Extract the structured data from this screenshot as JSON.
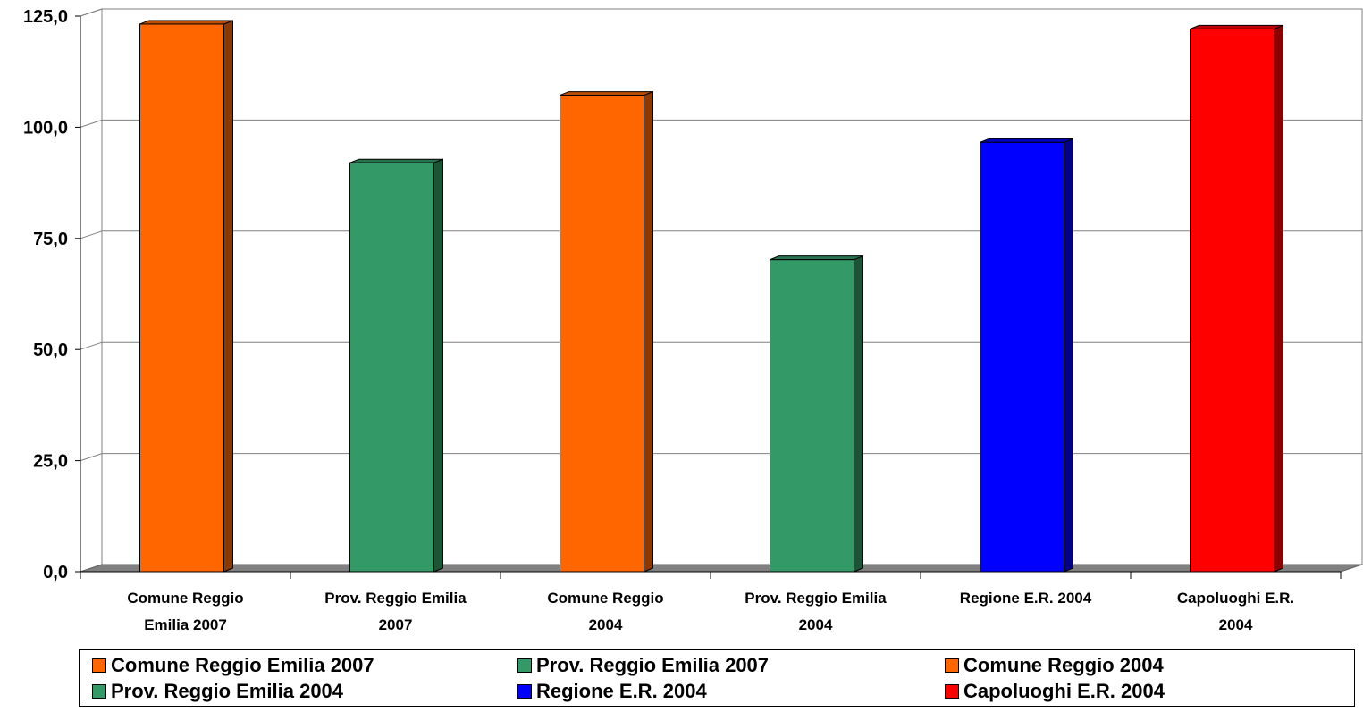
{
  "chart_data": {
    "type": "bar",
    "title": "",
    "xlabel": "",
    "ylabel": "",
    "categories": [
      "Comune Reggio Emilia 2007",
      "Prov. Reggio Emilia 2007",
      "Comune Reggio 2004",
      "Prov. Reggio Emilia 2004",
      "Regione E.R. 2004",
      "Capoluoghi E.R. 2004"
    ],
    "category_label_lines": [
      [
        "Comune Reggio",
        "Emilia 2007"
      ],
      [
        "Prov. Reggio Emilia",
        "2007"
      ],
      [
        "Comune Reggio",
        "2004"
      ],
      [
        "Prov. Reggio Emilia",
        "2004"
      ],
      [
        "Regione E.R. 2004"
      ],
      [
        "Capoluoghi E.R.",
        "2004"
      ]
    ],
    "values": [
      123.2,
      92.0,
      107.2,
      70.2,
      96.6,
      122.1
    ],
    "colors": [
      "#ff6600",
      "#339966",
      "#ff6600",
      "#339966",
      "#0000ff",
      "#ff0000"
    ],
    "ylim": [
      0,
      125
    ],
    "yticks": [
      0,
      25,
      50,
      75,
      100,
      125
    ],
    "ytick_labels": [
      "0,0",
      "25,0",
      "50,0",
      "75,0",
      "100,0",
      "125,0"
    ],
    "grid": true,
    "legend_position": "bottom",
    "legend": [
      {
        "label": "Comune Reggio Emilia 2007",
        "color": "#ff6600"
      },
      {
        "label": "Prov. Reggio Emilia 2007",
        "color": "#339966"
      },
      {
        "label": "Comune Reggio 2004",
        "color": "#ff6600"
      },
      {
        "label": "Prov. Reggio Emilia 2004",
        "color": "#339966"
      },
      {
        "label": "Regione E.R. 2004",
        "color": "#0000ff"
      },
      {
        "label": "Capoluoghi E.R. 2004",
        "color": "#ff0000"
      }
    ]
  }
}
